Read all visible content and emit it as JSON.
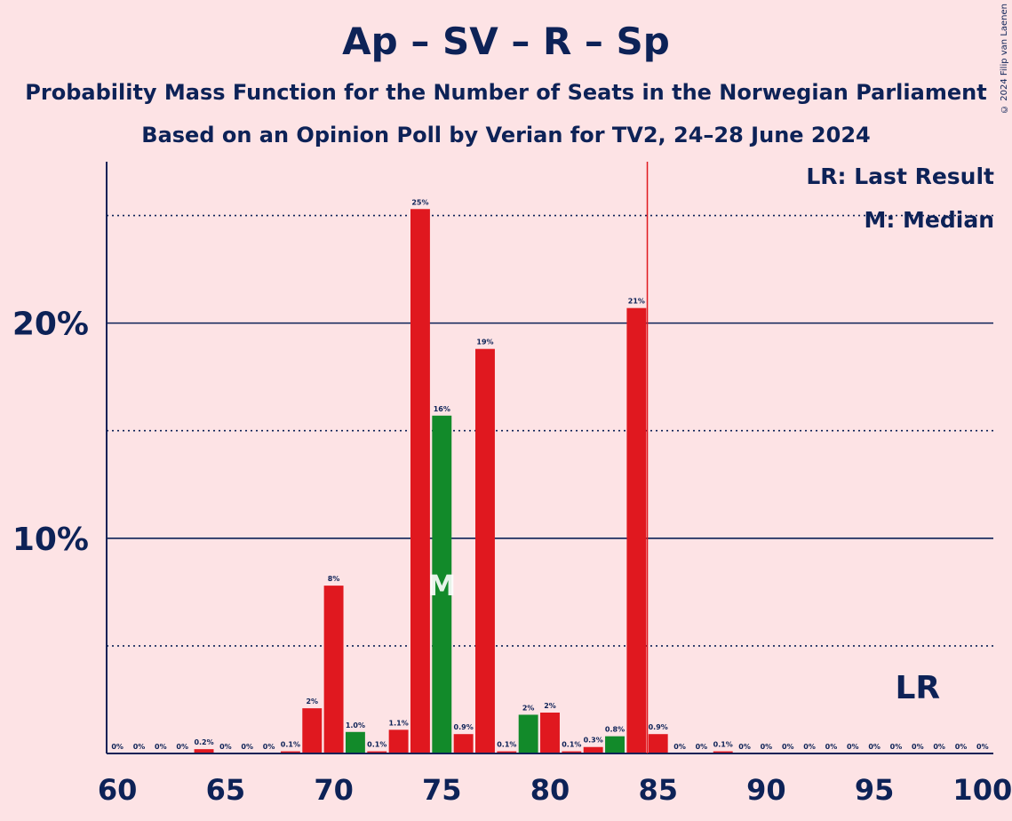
{
  "title": "Ap – SV – R – Sp",
  "subtitle_1": "Probability Mass Function for the Number of Seats in the Norwegian Parliament",
  "subtitle_2": "Based on an Opinion Poll by Verian for TV2, 24–28 June 2024",
  "copyright": "© 2024 Filip van Laenen",
  "legend": {
    "last_result": "LR: Last Result",
    "median": "M: Median"
  },
  "colors": {
    "background": "#fde3e5",
    "bar_red": "#e0181f",
    "bar_green": "#128a2a",
    "text": "#0d2257",
    "lr_line": "#e0181f"
  },
  "chart_data": {
    "type": "bar",
    "x": [
      60,
      61,
      62,
      63,
      64,
      65,
      66,
      67,
      68,
      69,
      70,
      71,
      72,
      73,
      74,
      75,
      76,
      77,
      78,
      79,
      80,
      81,
      82,
      83,
      84,
      85,
      86,
      87,
      88,
      89,
      90,
      91,
      92,
      93,
      94,
      95,
      96,
      97,
      98,
      99,
      100
    ],
    "values": [
      0,
      0,
      0,
      0,
      0.2,
      0,
      0,
      0,
      0.1,
      2.1,
      7.8,
      1.0,
      0.1,
      1.1,
      25.3,
      15.7,
      0.9,
      18.8,
      0.1,
      1.8,
      1.9,
      0.1,
      0.3,
      0.8,
      20.7,
      0.9,
      0,
      0,
      0.1,
      0,
      0,
      0,
      0,
      0,
      0,
      0,
      0,
      0,
      0,
      0,
      0
    ],
    "labels": [
      "0%",
      "0%",
      "0%",
      "0%",
      "0.2%",
      "0%",
      "0%",
      "0%",
      "0.1%",
      "2%",
      "8%",
      "1.0%",
      "0.1%",
      "1.1%",
      "25%",
      "16%",
      "0.9%",
      "19%",
      "0.1%",
      "2%",
      "2%",
      "0.1%",
      "0.3%",
      "0.8%",
      "21%",
      "0.9%",
      "0%",
      "0%",
      "0.1%",
      "0%",
      "0%",
      "0%",
      "0%",
      "0%",
      "0%",
      "0%",
      "0%",
      "0%",
      "0%",
      "0%",
      "0%"
    ],
    "green_seats": [
      71,
      75,
      79,
      83
    ],
    "median_seat": 75,
    "median_marker": "M",
    "last_result_seat": 85,
    "last_result_marker": "LR",
    "lr_marker_seat": 97,
    "xticks": [
      60,
      65,
      70,
      75,
      80,
      85,
      90,
      95,
      100
    ],
    "xtick_labels": [
      "60",
      "65",
      "70",
      "75",
      "80",
      "85",
      "90",
      "95",
      "100"
    ],
    "yticks_major": [
      10,
      20
    ],
    "ytick_labels": [
      "10%",
      "20%"
    ],
    "yticks_minor": [
      5,
      15,
      25
    ],
    "ylim": [
      0,
      27.5
    ],
    "xlim": [
      59.5,
      100.5
    ]
  }
}
